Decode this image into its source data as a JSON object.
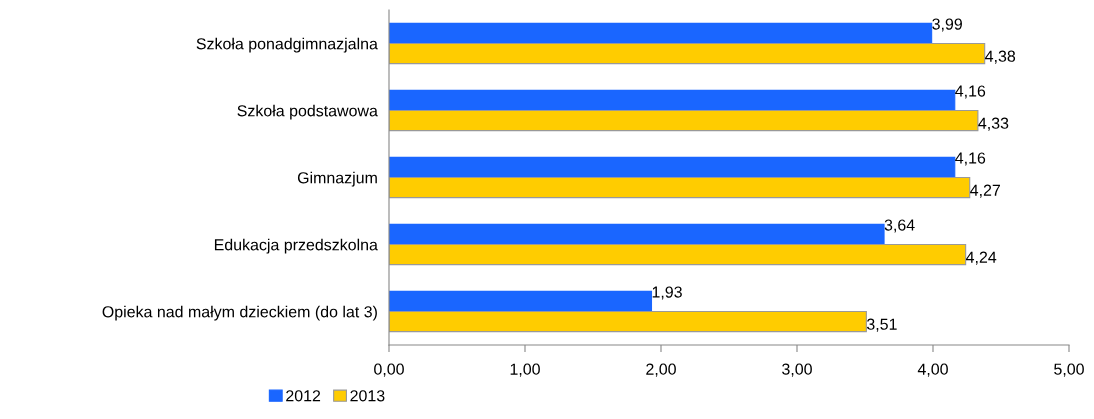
{
  "chart_data": {
    "type": "bar",
    "orientation": "horizontal",
    "categories": [
      "Szkoła ponadgimnazjalna",
      "Szkoła podstawowa",
      "Gimnazjum",
      "Edukacja przedszkolna",
      "Opieka nad małym dzieckiem (do lat 3)"
    ],
    "series": [
      {
        "name": "2012",
        "color": "#1a66ff",
        "values": [
          3.99,
          4.16,
          4.16,
          3.64,
          1.93
        ],
        "value_labels": [
          "3,99",
          "4,16",
          "4,16",
          "3,64",
          "1,93"
        ]
      },
      {
        "name": "2013",
        "color": "#ffcc00",
        "values": [
          4.38,
          4.33,
          4.27,
          4.24,
          3.51
        ],
        "value_labels": [
          "4,38",
          "4,33",
          "4,27",
          "4,24",
          "3,51"
        ]
      }
    ],
    "xlim": [
      0,
      5
    ],
    "xticks": [
      {
        "value": 0,
        "label": "0,00"
      },
      {
        "value": 1,
        "label": "1,00"
      },
      {
        "value": 2,
        "label": "2,00"
      },
      {
        "value": 3,
        "label": "3,00"
      },
      {
        "value": 4,
        "label": "4,00"
      },
      {
        "value": 5,
        "label": "5,00"
      }
    ],
    "grid": false,
    "legend": "bottom"
  }
}
